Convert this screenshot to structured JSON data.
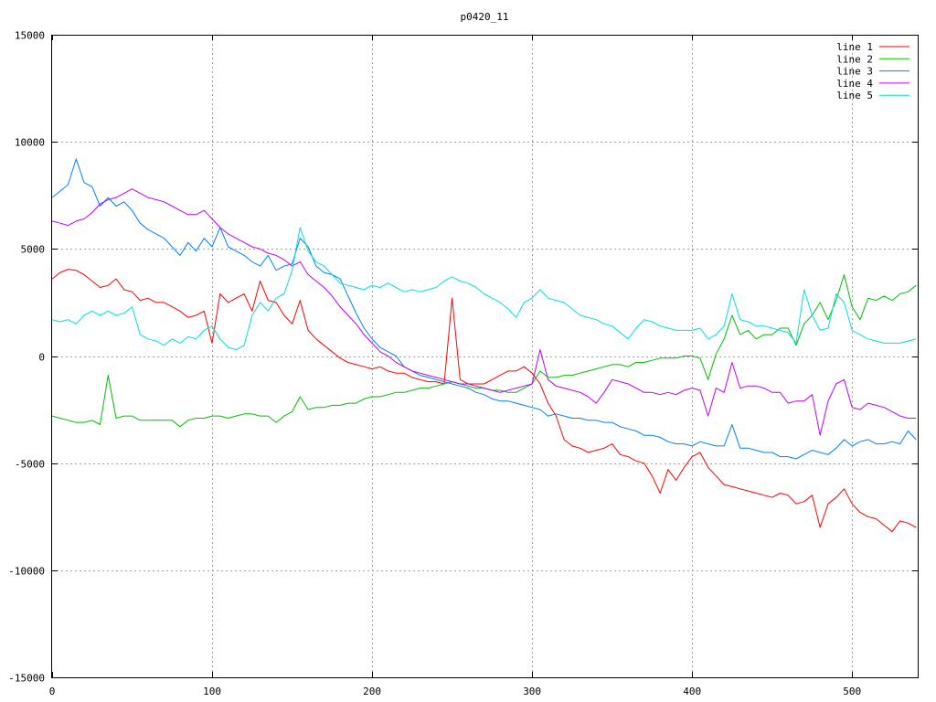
{
  "chart_data": {
    "type": "line",
    "title": "p0420_11",
    "xlim": [
      0,
      541
    ],
    "ylim": [
      -15000,
      15000
    ],
    "x_ticks": [
      0,
      100,
      200,
      300,
      400,
      500
    ],
    "y_ticks": [
      15000,
      10000,
      5000,
      0,
      -5000,
      -10000,
      -15000
    ],
    "grid": true,
    "legend_position": "top-right",
    "x": [
      0,
      5,
      10,
      15,
      20,
      25,
      30,
      35,
      40,
      45,
      50,
      55,
      60,
      65,
      70,
      75,
      80,
      85,
      90,
      95,
      100,
      105,
      110,
      115,
      120,
      125,
      130,
      135,
      140,
      145,
      150,
      155,
      160,
      165,
      170,
      175,
      180,
      185,
      190,
      195,
      200,
      205,
      210,
      215,
      220,
      225,
      230,
      235,
      240,
      245,
      250,
      255,
      260,
      265,
      270,
      275,
      280,
      285,
      290,
      295,
      300,
      305,
      310,
      315,
      320,
      325,
      330,
      335,
      340,
      345,
      350,
      355,
      360,
      365,
      370,
      375,
      380,
      385,
      390,
      395,
      400,
      405,
      410,
      415,
      420,
      425,
      430,
      435,
      440,
      445,
      450,
      455,
      460,
      465,
      470,
      475,
      480,
      485,
      490,
      495,
      500,
      505,
      510,
      515,
      520,
      525,
      530,
      535,
      540
    ],
    "series": [
      {
        "name": "line 1",
        "color": "#ff0000",
        "values": [
          3600,
          3900,
          4050,
          4000,
          3800,
          3500,
          3200,
          3300,
          3600,
          3100,
          3000,
          2600,
          2700,
          2500,
          2500,
          2300,
          2100,
          1800,
          1900,
          2100,
          600,
          2900,
          2500,
          2700,
          2900,
          2100,
          3500,
          2600,
          2500,
          1900,
          1500,
          2600,
          1200,
          800,
          500,
          200,
          -100,
          -300,
          -400,
          -500,
          -600,
          -500,
          -700,
          -800,
          -800,
          -1000,
          -1100,
          -1200,
          -1200,
          -1300,
          2700,
          -1100,
          -1300,
          -1300,
          -1300,
          -1100,
          -900,
          -700,
          -700,
          -500,
          -800,
          -1300,
          -2200,
          -2800,
          -3900,
          -4200,
          -4300,
          -4500,
          -4400,
          -4300,
          -4100,
          -4600,
          -4700,
          -4900,
          -5000,
          -5600,
          -6400,
          -5300,
          -5800,
          -5200,
          -4700,
          -4500,
          -5200,
          -5600,
          -6000,
          -6100,
          -6200,
          -6300,
          -6400,
          -6500,
          -6600,
          -6400,
          -6500,
          -6900,
          -6800,
          -6500,
          -8000,
          -6900,
          -6600,
          -6200,
          -6900,
          -7300,
          -7500,
          -7600,
          -7900,
          -8200,
          -7700,
          -7800,
          -8000
        ]
      },
      {
        "name": "line 2",
        "color": "#00c000",
        "values": [
          -2800,
          -2900,
          -3000,
          -3100,
          -3100,
          -3000,
          -3200,
          -900,
          -2900,
          -2800,
          -2800,
          -3000,
          -3000,
          -3000,
          -3000,
          -3000,
          -3300,
          -3000,
          -2900,
          -2900,
          -2800,
          -2800,
          -2900,
          -2800,
          -2700,
          -2700,
          -2800,
          -2800,
          -3100,
          -2800,
          -2600,
          -1900,
          -2500,
          -2400,
          -2400,
          -2300,
          -2300,
          -2200,
          -2200,
          -2000,
          -1900,
          -1900,
          -1800,
          -1700,
          -1700,
          -1600,
          -1500,
          -1500,
          -1400,
          -1300,
          -1200,
          -1300,
          -1400,
          -1500,
          -1500,
          -1600,
          -1600,
          -1700,
          -1700,
          -1500,
          -1300,
          -700,
          -1000,
          -1000,
          -900,
          -900,
          -800,
          -700,
          -600,
          -500,
          -400,
          -400,
          -500,
          -300,
          -300,
          -200,
          -100,
          -100,
          -100,
          0,
          0,
          -100,
          -1100,
          100,
          800,
          1900,
          1000,
          1200,
          800,
          1000,
          1000,
          1300,
          1300,
          500,
          1500,
          1900,
          2500,
          1700,
          2600,
          3800,
          2300,
          1700,
          2700,
          2600,
          2800,
          2600,
          2900,
          3000,
          3300
        ]
      },
      {
        "name": "line 3",
        "color": "#0080ff",
        "values": [
          7400,
          7700,
          8000,
          9200,
          8100,
          7900,
          7000,
          7400,
          7000,
          7200,
          6800,
          6200,
          5900,
          5700,
          5500,
          5100,
          4700,
          5300,
          4900,
          5500,
          5100,
          6000,
          5100,
          4900,
          4700,
          4400,
          4200,
          4700,
          4000,
          4200,
          4300,
          5500,
          5100,
          4200,
          3900,
          3800,
          3600,
          2800,
          2000,
          1300,
          800,
          400,
          200,
          0,
          -500,
          -700,
          -900,
          -1000,
          -1100,
          -1200,
          -1300,
          -1400,
          -1500,
          -1700,
          -1800,
          -2000,
          -2100,
          -2100,
          -2200,
          -2300,
          -2400,
          -2500,
          -2800,
          -2700,
          -2800,
          -2900,
          -2900,
          -3000,
          -3000,
          -3100,
          -3100,
          -3300,
          -3400,
          -3500,
          -3700,
          -3700,
          -3800,
          -4000,
          -4100,
          -4100,
          -4200,
          -4000,
          -4100,
          -4200,
          -4200,
          -3200,
          -4300,
          -4300,
          -4400,
          -4500,
          -4500,
          -4700,
          -4700,
          -4800,
          -4600,
          -4400,
          -4500,
          -4600,
          -4300,
          -3900,
          -4200,
          -4000,
          -3900,
          -4100,
          -4100,
          -4000,
          -4100,
          -3500,
          -3900
        ]
      },
      {
        "name": "line 4",
        "color": "#c000ff",
        "values": [
          6300,
          6200,
          6100,
          6300,
          6400,
          6700,
          7100,
          7300,
          7400,
          7600,
          7800,
          7600,
          7400,
          7300,
          7200,
          7000,
          6800,
          6600,
          6600,
          6800,
          6400,
          6000,
          5700,
          5500,
          5300,
          5100,
          5000,
          4800,
          4700,
          4500,
          4200,
          4400,
          3800,
          3500,
          3200,
          2800,
          2300,
          1900,
          1500,
          1000,
          600,
          200,
          0,
          -300,
          -500,
          -700,
          -800,
          -900,
          -1000,
          -1100,
          -1200,
          -1300,
          -1300,
          -1400,
          -1500,
          -1600,
          -1700,
          -1600,
          -1500,
          -1400,
          -1300,
          300,
          -1100,
          -1400,
          -1500,
          -1600,
          -1700,
          -1900,
          -2200,
          -1700,
          -1100,
          -1200,
          -1300,
          -1500,
          -1700,
          -1700,
          -1800,
          -1700,
          -1800,
          -1600,
          -1500,
          -1600,
          -2800,
          -1500,
          -1700,
          -300,
          -1500,
          -1400,
          -1400,
          -1500,
          -1700,
          -1700,
          -2200,
          -2100,
          -2100,
          -1800,
          -3700,
          -2100,
          -1300,
          -1100,
          -2400,
          -2500,
          -2200,
          -2300,
          -2400,
          -2600,
          -2800,
          -2900,
          -2900
        ]
      },
      {
        "name": "line 5",
        "color": "#00e0e0",
        "values": [
          1700,
          1600,
          1700,
          1500,
          1900,
          2100,
          1900,
          2100,
          1900,
          2000,
          2300,
          1000,
          800,
          700,
          500,
          800,
          600,
          900,
          800,
          1200,
          1400,
          800,
          400,
          300,
          500,
          1900,
          2500,
          2100,
          2700,
          2900,
          4000,
          6000,
          4900,
          4400,
          4200,
          3800,
          3400,
          3300,
          3200,
          3100,
          3300,
          3200,
          3400,
          3200,
          3000,
          3100,
          3000,
          3100,
          3200,
          3500,
          3700,
          3500,
          3400,
          3200,
          2900,
          2700,
          2500,
          2200,
          1800,
          2500,
          2700,
          3100,
          2700,
          2600,
          2500,
          2200,
          1900,
          1800,
          1700,
          1500,
          1400,
          1100,
          800,
          1300,
          1700,
          1600,
          1400,
          1300,
          1200,
          1200,
          1200,
          1300,
          800,
          1000,
          1400,
          2900,
          1700,
          1600,
          1400,
          1400,
          1300,
          1200,
          1100,
          600,
          3100,
          1900,
          1200,
          1300,
          2900,
          2500,
          1200,
          1000,
          800,
          700,
          600,
          600,
          600,
          700,
          800
        ]
      }
    ]
  }
}
